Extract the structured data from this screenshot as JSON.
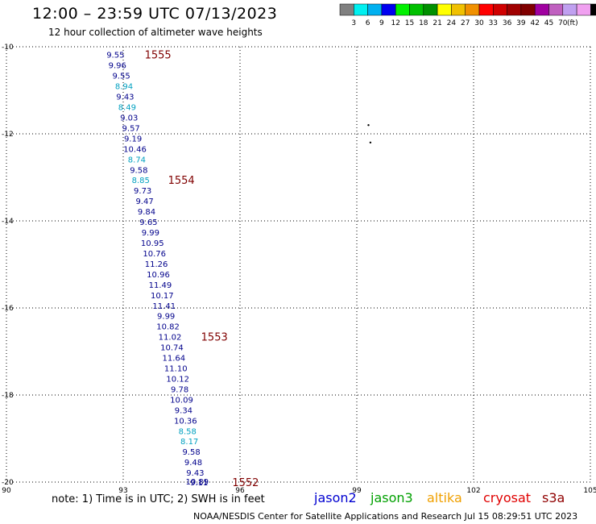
{
  "header": {
    "title": "12:00 – 23:59 UTC 07/13/2023",
    "subtitle": "12 hour collection of altimeter wave heights"
  },
  "colorbar": {
    "colors": [
      "#808080",
      "#00f0f0",
      "#00b0f0",
      "#0000f0",
      "#00f000",
      "#00c000",
      "#009000",
      "#ffff00",
      "#f0c000",
      "#f09000",
      "#ff0000",
      "#d00000",
      "#a00000",
      "#800000",
      "#a000a0",
      "#c060c0",
      "#c0a0f0",
      "#f0a0f0",
      "#000000"
    ],
    "labels": [
      "3",
      "6",
      "9",
      "12",
      "15",
      "18",
      "21",
      "24",
      "27",
      "30",
      "33",
      "36",
      "39",
      "42",
      "45",
      "70",
      "(ft)"
    ]
  },
  "chart_data": {
    "type": "map",
    "xlim": [
      90,
      105
    ],
    "ylim": [
      -20,
      -10
    ],
    "x_ticks": [
      "90",
      "93",
      "96",
      "99",
      "102",
      "105"
    ],
    "y_ticks": [
      "-10",
      "-12",
      "-14",
      "-16",
      "-18",
      "-20"
    ],
    "track_color": "#00008b",
    "alt_color": "#00a0c0",
    "points": [
      {
        "lon": 92.8,
        "lat": -10.18,
        "v": "9.55",
        "c": "d"
      },
      {
        "lon": 92.85,
        "lat": -10.42,
        "v": "9.96",
        "c": "d"
      },
      {
        "lon": 92.95,
        "lat": -10.66,
        "v": "9.55",
        "c": "d"
      },
      {
        "lon": 93.02,
        "lat": -10.9,
        "v": "8.94",
        "c": "l"
      },
      {
        "lon": 93.05,
        "lat": -11.14,
        "v": "9.43",
        "c": "d"
      },
      {
        "lon": 93.1,
        "lat": -11.38,
        "v": "8.49",
        "c": "l"
      },
      {
        "lon": 93.15,
        "lat": -11.62,
        "v": "9.03",
        "c": "d"
      },
      {
        "lon": 93.2,
        "lat": -11.86,
        "v": "9.57",
        "c": "d"
      },
      {
        "lon": 93.25,
        "lat": -12.1,
        "v": "9.19",
        "c": "d"
      },
      {
        "lon": 93.3,
        "lat": -12.34,
        "v": "10.46",
        "c": "d"
      },
      {
        "lon": 93.35,
        "lat": -12.58,
        "v": "8.74",
        "c": "l"
      },
      {
        "lon": 93.4,
        "lat": -12.82,
        "v": "9.58",
        "c": "d"
      },
      {
        "lon": 93.45,
        "lat": -13.06,
        "v": "8.85",
        "c": "l"
      },
      {
        "lon": 93.5,
        "lat": -13.3,
        "v": "9.73",
        "c": "d"
      },
      {
        "lon": 93.55,
        "lat": -13.54,
        "v": "9.47",
        "c": "d"
      },
      {
        "lon": 93.6,
        "lat": -13.78,
        "v": "9.84",
        "c": "d"
      },
      {
        "lon": 93.65,
        "lat": -14.02,
        "v": "9.65",
        "c": "d"
      },
      {
        "lon": 93.7,
        "lat": -14.26,
        "v": "9.99",
        "c": "d"
      },
      {
        "lon": 93.75,
        "lat": -14.5,
        "v": "10.95",
        "c": "d"
      },
      {
        "lon": 93.8,
        "lat": -14.74,
        "v": "10.76",
        "c": "d"
      },
      {
        "lon": 93.85,
        "lat": -14.98,
        "v": "11.26",
        "c": "d"
      },
      {
        "lon": 93.9,
        "lat": -15.22,
        "v": "10.96",
        "c": "d"
      },
      {
        "lon": 93.95,
        "lat": -15.46,
        "v": "11.49",
        "c": "d"
      },
      {
        "lon": 94.0,
        "lat": -15.7,
        "v": "10.17",
        "c": "d"
      },
      {
        "lon": 94.05,
        "lat": -15.94,
        "v": "11.41",
        "c": "d"
      },
      {
        "lon": 94.1,
        "lat": -16.18,
        "v": "9.99",
        "c": "d"
      },
      {
        "lon": 94.15,
        "lat": -16.42,
        "v": "10.82",
        "c": "d"
      },
      {
        "lon": 94.2,
        "lat": -16.66,
        "v": "11.02",
        "c": "d"
      },
      {
        "lon": 94.25,
        "lat": -16.9,
        "v": "10.74",
        "c": "d"
      },
      {
        "lon": 94.3,
        "lat": -17.14,
        "v": "11.64",
        "c": "d"
      },
      {
        "lon": 94.35,
        "lat": -17.38,
        "v": "11.10",
        "c": "d"
      },
      {
        "lon": 94.4,
        "lat": -17.62,
        "v": "10.12",
        "c": "d"
      },
      {
        "lon": 94.45,
        "lat": -17.86,
        "v": "9.78",
        "c": "d"
      },
      {
        "lon": 94.5,
        "lat": -18.1,
        "v": "10.09",
        "c": "d"
      },
      {
        "lon": 94.55,
        "lat": -18.34,
        "v": "9.34",
        "c": "d"
      },
      {
        "lon": 94.6,
        "lat": -18.58,
        "v": "10.36",
        "c": "d"
      },
      {
        "lon": 94.65,
        "lat": -18.82,
        "v": "8.58",
        "c": "l"
      },
      {
        "lon": 94.7,
        "lat": -19.06,
        "v": "8.17",
        "c": "l"
      },
      {
        "lon": 94.75,
        "lat": -19.3,
        "v": "9.58",
        "c": "d"
      },
      {
        "lon": 94.8,
        "lat": -19.54,
        "v": "9.48",
        "c": "d"
      },
      {
        "lon": 94.85,
        "lat": -19.78,
        "v": "9.43",
        "c": "d"
      },
      {
        "lon": 94.9,
        "lat": -19.98,
        "v": "10.89",
        "c": "d"
      },
      {
        "lon": 94.95,
        "lat": -20.0,
        "v": "9.11",
        "c": "d"
      }
    ],
    "time_labels": [
      {
        "lon": 93.55,
        "lat": -10.18,
        "t": "1555"
      },
      {
        "lon": 94.15,
        "lat": -13.06,
        "t": "1554"
      },
      {
        "lon": 95.0,
        "lat": -16.66,
        "t": "1553"
      },
      {
        "lon": 95.8,
        "lat": -20.0,
        "t": "1552"
      }
    ],
    "time_color": "#800000",
    "island_marks": [
      {
        "lon": 99.3,
        "lat": -11.8
      },
      {
        "lon": 99.35,
        "lat": -12.2
      }
    ]
  },
  "footer": {
    "note": "note:  1) Time is in UTC; 2) SWH is in feet",
    "satellites": [
      {
        "name": "jason2",
        "color": "#0000d0"
      },
      {
        "name": "jason3",
        "color": "#00a000"
      },
      {
        "name": "altika",
        "color": "#f0a000"
      },
      {
        "name": "cryosat",
        "color": "#e00000"
      },
      {
        "name": "s3a",
        "color": "#900000"
      }
    ],
    "credit": "NOAA/NESDIS Center for Satellite Applications and Research    Jul 15 08:29:51 UTC 2023"
  }
}
